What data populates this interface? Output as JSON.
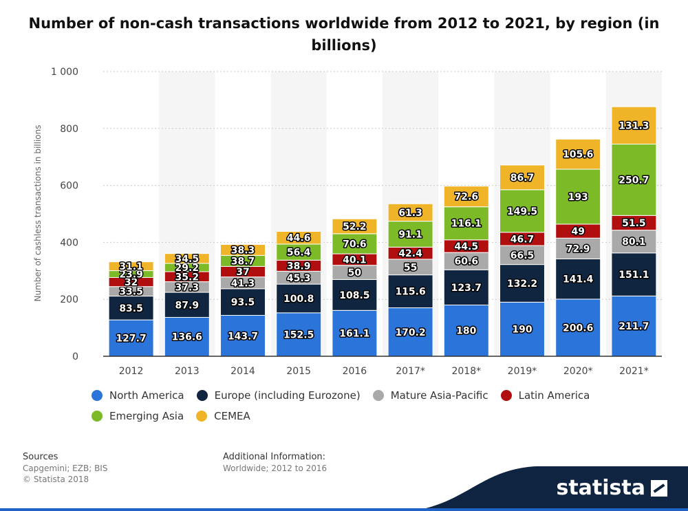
{
  "title": "Number of non-cash transactions worldwide from 2012 to 2021, by region (in billions)",
  "chart_data": {
    "type": "bar",
    "stacked": true,
    "title": "Number of non-cash transactions worldwide from 2012 to 2021, by region (in billions)",
    "xlabel": "",
    "ylabel": "Number of cashless transactions in billions",
    "ylim": [
      0,
      1000
    ],
    "y_ticks": [
      0,
      200,
      400,
      600,
      800,
      1000
    ],
    "y_tick_labels": [
      "0",
      "200",
      "400",
      "600",
      "800",
      "1 000"
    ],
    "grid": true,
    "legend_position": "bottom",
    "categories": [
      "2012",
      "2013",
      "2014",
      "2015",
      "2016",
      "2017*",
      "2018*",
      "2019*",
      "2020*",
      "2021*"
    ],
    "series": [
      {
        "name": "North America",
        "color": "#2b74d9",
        "values": [
          127.7,
          136.6,
          143.7,
          152.5,
          161.1,
          170.2,
          180,
          190,
          200.6,
          211.7
        ]
      },
      {
        "name": "Europe (including Eurozone)",
        "color": "#10253f",
        "values": [
          83.5,
          87.9,
          93.5,
          100.8,
          108.5,
          115.6,
          123.7,
          132.2,
          141.4,
          151.1
        ]
      },
      {
        "name": "Mature Asia-Pacific",
        "color": "#a9a9a9",
        "values": [
          33.5,
          37.3,
          41.3,
          45.3,
          50,
          55,
          60.6,
          66.5,
          72.9,
          80.1
        ]
      },
      {
        "name": "Latin America",
        "color": "#b10f0f",
        "values": [
          32,
          35.2,
          37,
          38.9,
          40.1,
          42.4,
          44.5,
          46.7,
          49,
          51.5
        ]
      },
      {
        "name": "Emerging Asia",
        "color": "#7dba27",
        "values": [
          23.9,
          29.2,
          38.7,
          56.4,
          70.6,
          91.1,
          116.1,
          149.5,
          193,
          250.7
        ]
      },
      {
        "name": "CEMEA",
        "color": "#f0b429",
        "values": [
          31.1,
          34.5,
          38.3,
          44.6,
          52.2,
          61.3,
          72.6,
          86.7,
          105.6,
          131.3
        ]
      }
    ]
  },
  "footer": {
    "sources_heading": "Sources",
    "sources_text": "Capgemini; EZB; BIS",
    "copyright": "© Statista 2018",
    "additional_heading": "Additional Information:",
    "additional_text": "Worldwide; 2012 to 2016",
    "brand": "statista"
  }
}
